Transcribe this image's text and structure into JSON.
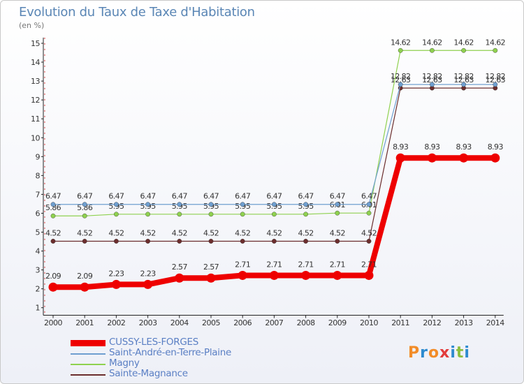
{
  "header": {
    "title": "Evolution du Taux de Taxe d'Habitation",
    "subtitle": "(en %)"
  },
  "logo": {
    "text": "Proxiti",
    "colors": [
      "#f28c28",
      "#2e8bcf",
      "#f28c28",
      "#e23b3b",
      "#2e8bcf",
      "#8cbf3f",
      "#2e8bcf"
    ]
  },
  "chart_data": {
    "type": "line",
    "title": "Evolution du Taux de Taxe d'Habitation",
    "subtitle": "(en %)",
    "xlabel": "",
    "ylabel": "",
    "ylim": [
      0.6,
      15.3
    ],
    "yticks": [
      "1",
      "2",
      "3",
      "4",
      "5",
      "6",
      "7",
      "8",
      "9",
      "10",
      "11",
      "12",
      "13",
      "14",
      "15"
    ],
    "grid": false,
    "legend": "bottom-left",
    "x": [
      "2000",
      "2001",
      "2002",
      "2003",
      "2004",
      "2005",
      "2006",
      "2007",
      "2008",
      "2009",
      "2010",
      "2011",
      "2012",
      "2013",
      "2014"
    ],
    "series": [
      {
        "name": "Sainte-Magnance",
        "color": "#6b2d2d",
        "values": [
          4.52,
          4.52,
          4.52,
          4.52,
          4.52,
          4.52,
          4.52,
          4.52,
          4.52,
          4.52,
          4.52,
          12.63,
          12.63,
          12.63,
          12.63
        ],
        "labels": [
          "4.52",
          "4.52",
          "4.52",
          "4.52",
          "4.52",
          "4.52",
          "4.52",
          "4.52",
          "4.52",
          "4.52",
          "4.52",
          "12.63",
          "12.63",
          "12.63",
          "12.63"
        ]
      },
      {
        "name": "Magny",
        "color": "#8fd14f",
        "values": [
          5.86,
          5.86,
          5.95,
          5.95,
          5.95,
          5.95,
          5.95,
          5.95,
          5.95,
          6.01,
          6.01,
          14.62,
          14.62,
          14.62,
          14.62
        ],
        "labels": [
          "5.86",
          "5.86",
          "5.95",
          "5.95",
          "5.95",
          "5.95",
          "5.95",
          "5.95",
          "5.95",
          "6.01",
          "6.01",
          "14.62",
          "14.62",
          "14.62",
          "14.62"
        ]
      },
      {
        "name": "Saint-André-en-Terre-Plaine",
        "color": "#6f9fd0",
        "values": [
          6.47,
          6.47,
          6.47,
          6.47,
          6.47,
          6.47,
          6.47,
          6.47,
          6.47,
          6.47,
          6.47,
          12.82,
          12.82,
          12.82,
          12.82
        ],
        "labels": [
          "6.47",
          "6.47",
          "6.47",
          "6.47",
          "6.47",
          "6.47",
          "6.47",
          "6.47",
          "6.47",
          "6.47",
          "6.47",
          "12.82",
          "12.82",
          "12.82",
          "12.82"
        ]
      },
      {
        "name": "CUSSY-LES-FORGES",
        "color": "#ee0000",
        "values": [
          2.09,
          2.09,
          2.23,
          2.23,
          2.57,
          2.57,
          2.71,
          2.71,
          2.71,
          2.71,
          2.71,
          8.93,
          8.93,
          8.93,
          8.93
        ],
        "labels": [
          "2.09",
          "2.09",
          "2.23",
          "2.23",
          "2.57",
          "2.57",
          "2.71",
          "2.71",
          "2.71",
          "2.71",
          "2.71",
          "8.93",
          "8.93",
          "8.93",
          "8.93"
        ]
      }
    ],
    "legend_entries": [
      {
        "name": "CUSSY-LES-FORGES",
        "color": "#ee0000"
      },
      {
        "name": "Saint-André-en-Terre-Plaine",
        "color": "#6f9fd0"
      },
      {
        "name": "Magny",
        "color": "#8fd14f"
      },
      {
        "name": "Sainte-Magnance",
        "color": "#6b2d2d"
      }
    ]
  }
}
